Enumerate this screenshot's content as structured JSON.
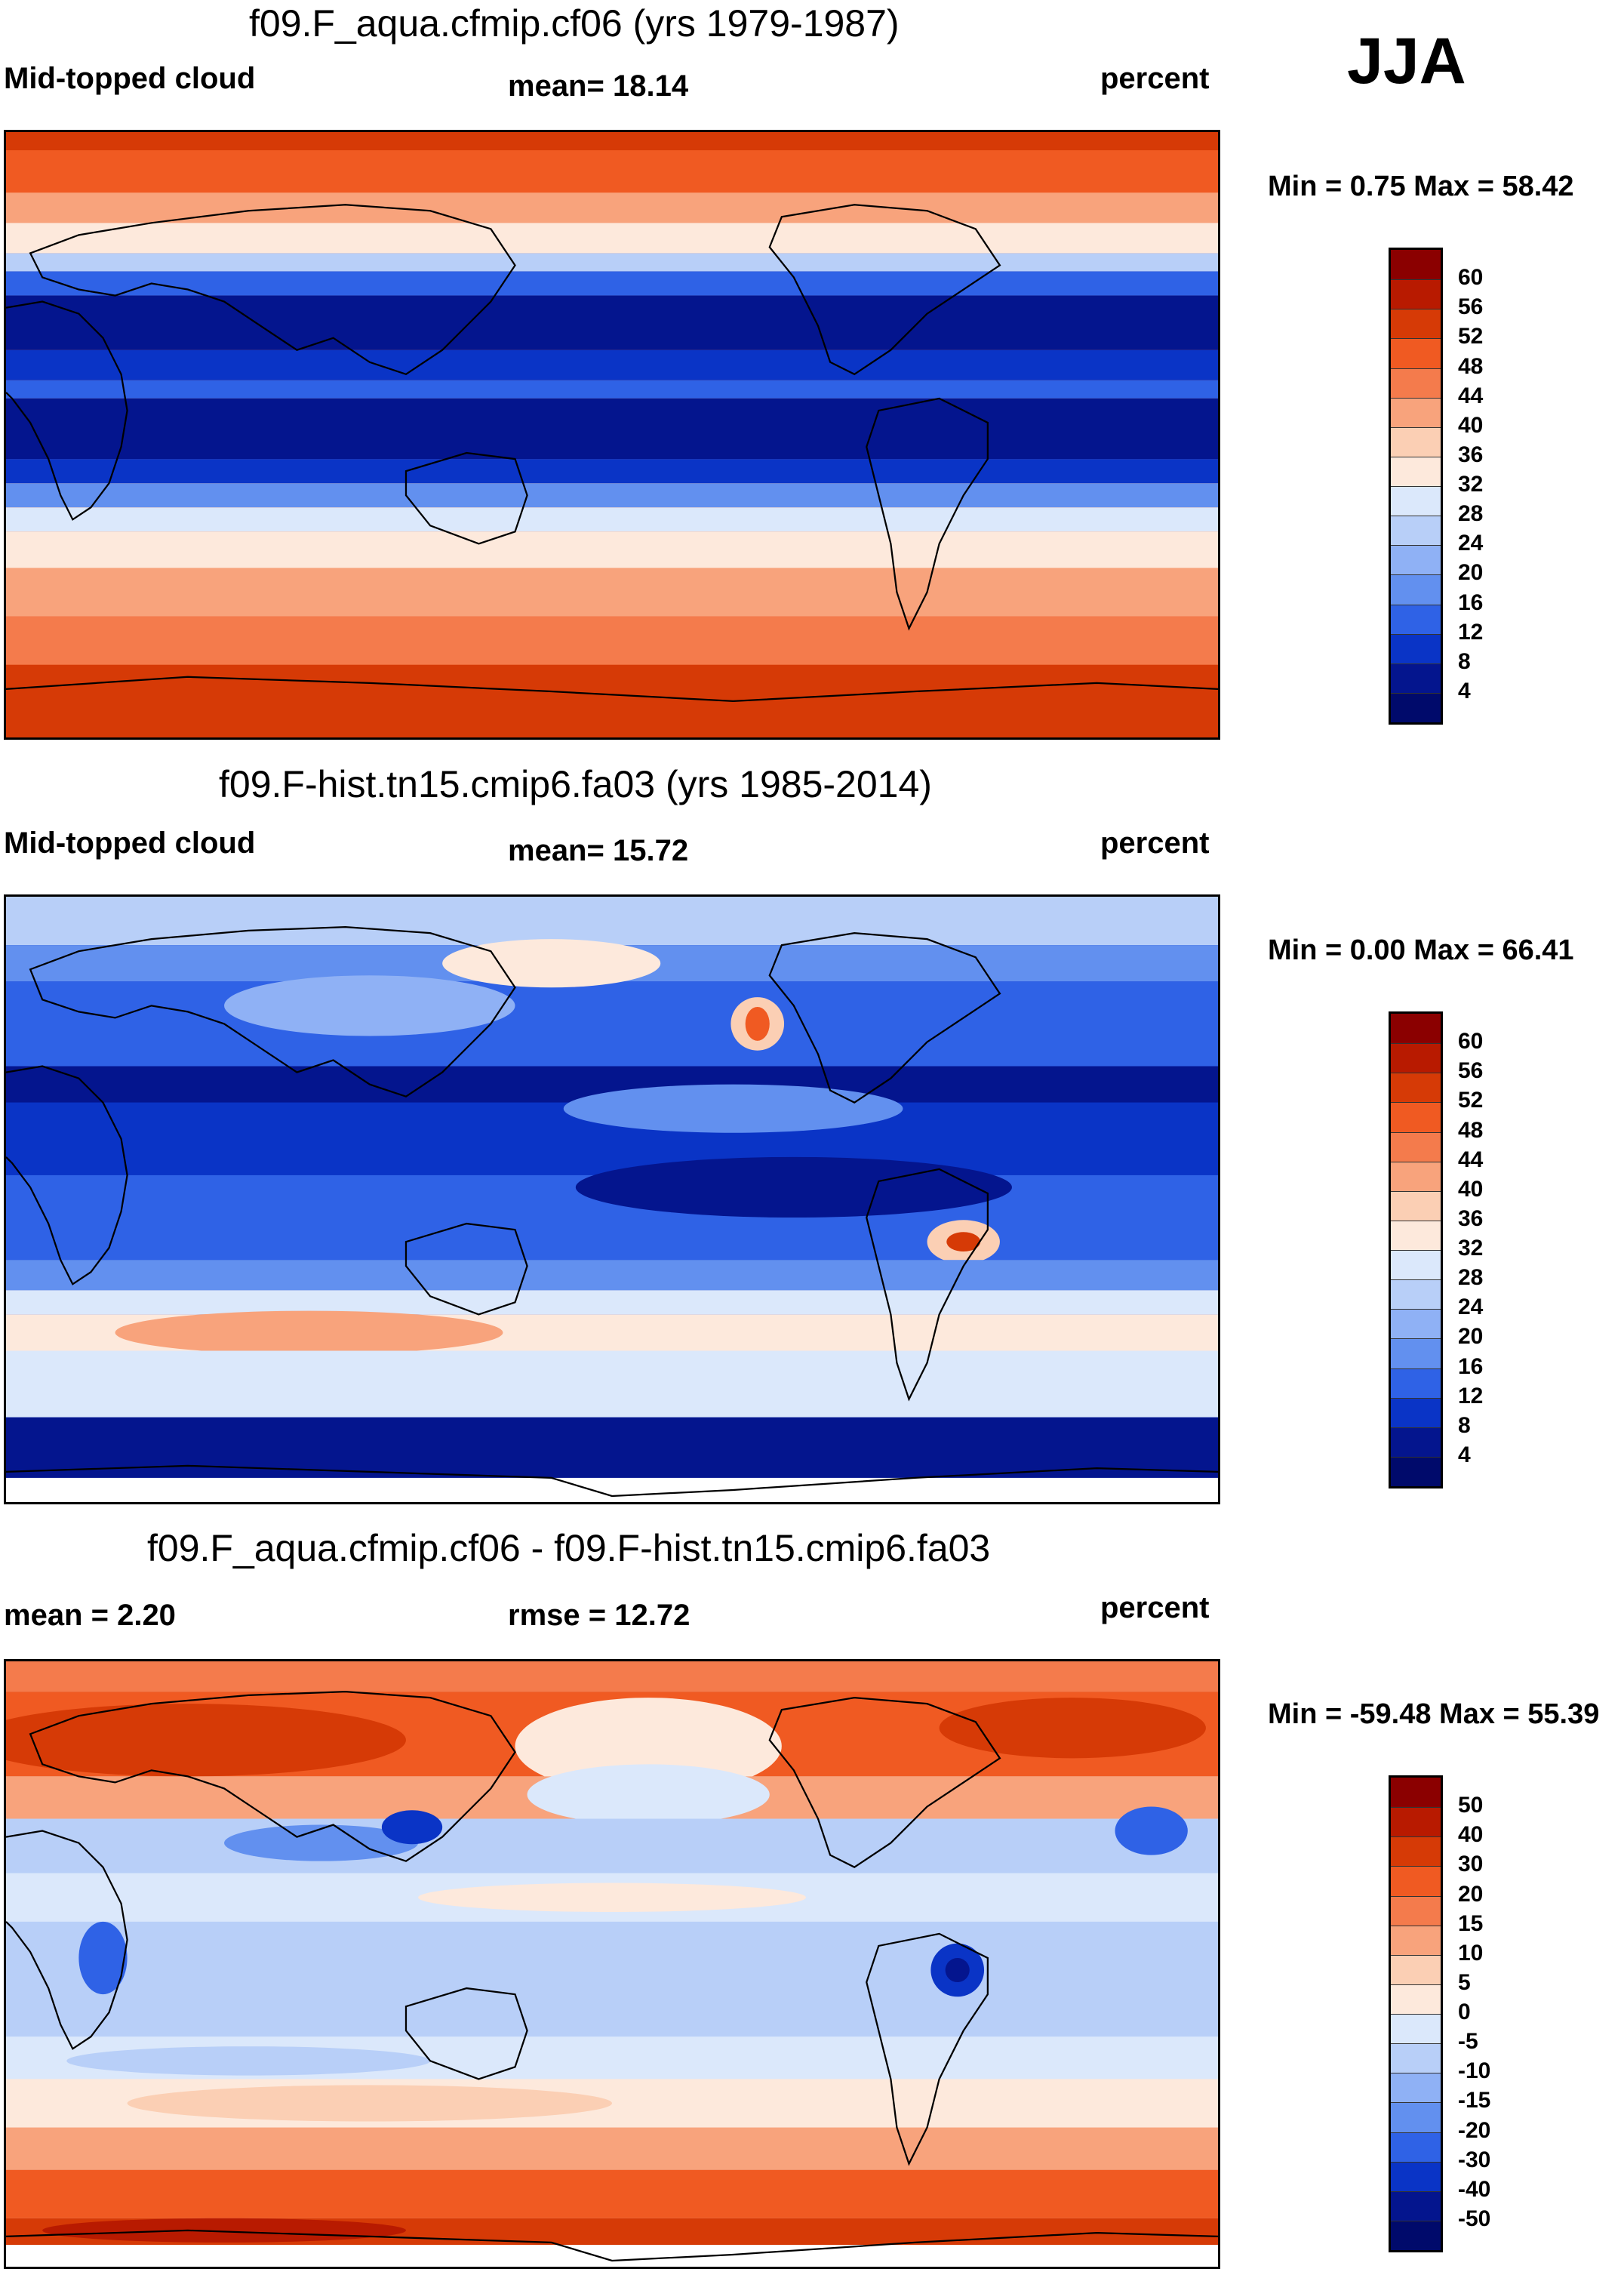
{
  "season": "JJA",
  "panels": [
    {
      "title": "f09.F_aqua.cfmip.cf06 (yrs 1979-1987)",
      "left": "Mid-topped cloud",
      "center": "mean=  18.14",
      "right": "percent",
      "minmax": "Min =   0.75 Max =  58.42",
      "colorbar_labels": [
        "60",
        "56",
        "52",
        "48",
        "44",
        "40",
        "36",
        "32",
        "28",
        "24",
        "20",
        "16",
        "12",
        "8",
        "4"
      ]
    },
    {
      "title": "f09.F-hist.tn15.cmip6.fa03 (yrs 1985-2014)",
      "left": "Mid-topped cloud",
      "center": "mean=  15.72",
      "right": "percent",
      "minmax": "Min =   0.00 Max =  66.41",
      "colorbar_labels": [
        "60",
        "56",
        "52",
        "48",
        "44",
        "40",
        "36",
        "32",
        "28",
        "24",
        "20",
        "16",
        "12",
        "8",
        "4"
      ]
    },
    {
      "title": "f09.F_aqua.cfmip.cf06 - f09.F-hist.tn15.cmip6.fa03",
      "left": "mean =    2.20",
      "center": "rmse =  12.72",
      "right": "percent",
      "minmax": "Min = -59.48 Max =  55.39",
      "colorbar_labels": [
        "50",
        "40",
        "30",
        "20",
        "15",
        "10",
        "5",
        "0",
        "-5",
        "-10",
        "-15",
        "-20",
        "-30",
        "-40",
        "-50"
      ]
    }
  ],
  "palette": [
    "#8b0000",
    "#b81a00",
    "#d63a06",
    "#f05a22",
    "#f47b4c",
    "#f8a37c",
    "#fbcfb4",
    "#fde9dc",
    "#dbe8fb",
    "#b8cff8",
    "#8fb1f5",
    "#6290ef",
    "#2f62e6",
    "#0a34c6",
    "#04158e",
    "#000a6b"
  ]
}
